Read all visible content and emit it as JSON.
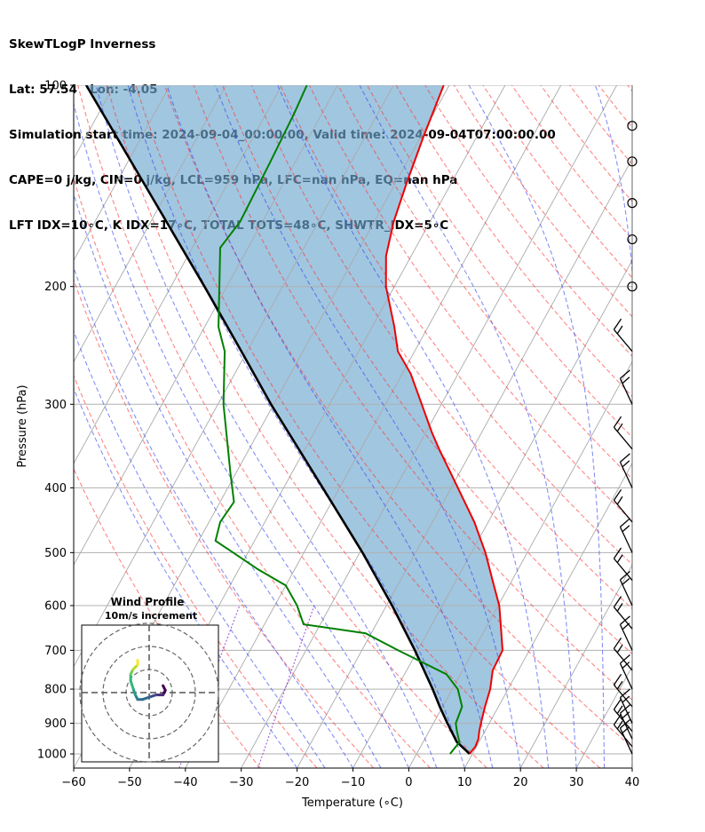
{
  "header": {
    "line1": "SkewTLogP Inverness",
    "line2": "Lat: 57.54   Lon: -4.05",
    "line3": "Simulation start time: 2024-09-04_00:00:00, Valid time: 2024-09-04T07:00:00.00",
    "line4": "CAPE=0 j/kg, CIN=0 j/kg, LCL=959 hPa, LFC=nan hPa, EQ=nan hPa",
    "line5": "LFT IDX=10∘C, K IDX=17∘C, TOTAL TOTS=48∘C, SHWTR_IDX=5∘C"
  },
  "chart_data": {
    "type": "line",
    "subtype": "skew-t log-p",
    "xlabel": "Temperature (∘C)",
    "ylabel": "Pressure (hPa)",
    "xlim": [
      -60,
      40
    ],
    "ylim_pressure": [
      1050,
      100
    ],
    "y_scale": "log",
    "x_ticks": [
      "−60",
      "−50",
      "−40",
      "−30",
      "−20",
      "−10",
      "0",
      "10",
      "20",
      "30",
      "40"
    ],
    "y_ticks": [
      1000,
      900,
      800,
      700,
      600,
      500,
      400,
      300,
      200,
      100
    ],
    "grid": true,
    "colors": {
      "temperature": "#ee0000",
      "dewpoint": "#008000",
      "parcel": "#000000",
      "shade": "#6fa8d0",
      "dry_adiabat": "#ff3333",
      "moist_adiabat": "#3344ee",
      "mixing_ratio": "#8833cc",
      "isotherm": "#aaaaaa"
    },
    "temperature_profile": [
      {
        "p": 1000,
        "t": 9.5
      },
      {
        "p": 975,
        "t": 9.8
      },
      {
        "p": 950,
        "t": 9.6
      },
      {
        "p": 925,
        "t": 9.0
      },
      {
        "p": 900,
        "t": 8.5
      },
      {
        "p": 850,
        "t": 7.6
      },
      {
        "p": 800,
        "t": 6.8
      },
      {
        "p": 750,
        "t": 5.4
      },
      {
        "p": 700,
        "t": 5.2
      },
      {
        "p": 650,
        "t": 2.8
      },
      {
        "p": 600,
        "t": 0.2
      },
      {
        "p": 550,
        "t": -3.5
      },
      {
        "p": 500,
        "t": -7.5
      },
      {
        "p": 450,
        "t": -12.5
      },
      {
        "p": 400,
        "t": -18.8
      },
      {
        "p": 350,
        "t": -26.0
      },
      {
        "p": 330,
        "t": -29.0
      },
      {
        "p": 300,
        "t": -33.5
      },
      {
        "p": 270,
        "t": -38.5
      },
      {
        "p": 250,
        "t": -43.0
      },
      {
        "p": 230,
        "t": -46.0
      },
      {
        "p": 200,
        "t": -51.5
      },
      {
        "p": 180,
        "t": -54.5
      },
      {
        "p": 160,
        "t": -56.5
      },
      {
        "p": 140,
        "t": -58.0
      },
      {
        "p": 120,
        "t": -59.5
      },
      {
        "p": 100,
        "t": -61.0
      }
    ],
    "dewpoint_profile": [
      {
        "p": 1000,
        "t": 6.0
      },
      {
        "p": 960,
        "t": 6.5
      },
      {
        "p": 925,
        "t": 5.0
      },
      {
        "p": 900,
        "t": 4.0
      },
      {
        "p": 850,
        "t": 3.5
      },
      {
        "p": 800,
        "t": 1.0
      },
      {
        "p": 760,
        "t": -2.5
      },
      {
        "p": 700,
        "t": -13.5
      },
      {
        "p": 660,
        "t": -21.0
      },
      {
        "p": 640,
        "t": -33.0
      },
      {
        "p": 600,
        "t": -36.0
      },
      {
        "p": 560,
        "t": -40.0
      },
      {
        "p": 530,
        "t": -46.5
      },
      {
        "p": 480,
        "t": -57.0
      },
      {
        "p": 450,
        "t": -58.0
      },
      {
        "p": 420,
        "t": -57.5
      },
      {
        "p": 380,
        "t": -61.0
      },
      {
        "p": 300,
        "t": -69.0
      },
      {
        "p": 250,
        "t": -74.0
      },
      {
        "p": 230,
        "t": -77.5
      },
      {
        "p": 210,
        "t": -80.0
      },
      {
        "p": 175,
        "t": -85.0
      },
      {
        "p": 160,
        "t": -84.0
      },
      {
        "p": 130,
        "t": -84.5
      },
      {
        "p": 110,
        "t": -85.0
      },
      {
        "p": 100,
        "t": -85.5
      }
    ],
    "parcel_profile": [
      {
        "p": 1000,
        "t": 9.5
      },
      {
        "p": 959,
        "t": 6.0
      },
      {
        "p": 900,
        "t": 2.5
      },
      {
        "p": 850,
        "t": -0.5
      },
      {
        "p": 800,
        "t": -3.5
      },
      {
        "p": 700,
        "t": -10.5
      },
      {
        "p": 600,
        "t": -19.0
      },
      {
        "p": 500,
        "t": -29.5
      },
      {
        "p": 400,
        "t": -43.0
      },
      {
        "p": 300,
        "t": -60.5
      },
      {
        "p": 250,
        "t": -71.0
      },
      {
        "p": 200,
        "t": -84.0
      },
      {
        "p": 150,
        "t": -101.0
      },
      {
        "p": 100,
        "t": -125.0
      }
    ],
    "wind_barb_levels": [
      1000,
      975,
      950,
      925,
      900,
      850,
      800,
      750,
      700,
      650,
      600,
      550,
      500,
      450,
      400,
      350,
      300,
      250,
      200,
      170,
      150,
      130,
      115
    ],
    "hodograph": {
      "title": "Wind Profile",
      "subtitle": "10m/s increment",
      "points": [
        [
          6,
          3
        ],
        [
          7,
          1
        ],
        [
          6,
          -1
        ],
        [
          3,
          -1
        ],
        [
          0,
          -2
        ],
        [
          -3,
          -3
        ],
        [
          -5,
          -3
        ],
        [
          -6,
          -1
        ],
        [
          -7,
          2
        ],
        [
          -8,
          5
        ],
        [
          -8,
          8
        ],
        [
          -7,
          10
        ],
        [
          -5,
          12
        ],
        [
          -5,
          14
        ]
      ]
    }
  }
}
